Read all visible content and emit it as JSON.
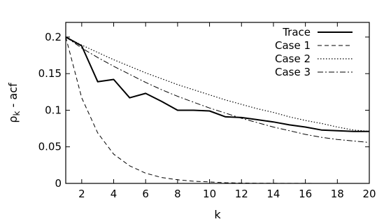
{
  "chart_data": {
    "type": "line",
    "xlabel": "k",
    "ylabel_main": "ρ",
    "ylabel_sub": "k",
    "ylabel_rest": " - acf",
    "xlim": [
      1,
      20
    ],
    "ylim": [
      0,
      0.22
    ],
    "xticks": [
      2,
      4,
      6,
      8,
      10,
      12,
      14,
      16,
      18,
      20
    ],
    "yticks": [
      0,
      0.05,
      0.1,
      0.15,
      0.2
    ],
    "ytick_labels": [
      "0",
      "0.05",
      "0.1",
      "0.15",
      "0.2"
    ],
    "legend_position": "top-right",
    "grid": false,
    "series": [
      {
        "name": "Trace",
        "style": "solid",
        "x": [
          1,
          2,
          3,
          4,
          5,
          6,
          7,
          8,
          9,
          10,
          11,
          12,
          13,
          14,
          15,
          16,
          17,
          18,
          19,
          20
        ],
        "values": [
          0.2,
          0.188,
          0.139,
          0.142,
          0.117,
          0.123,
          0.112,
          0.1,
          0.1,
          0.099,
          0.091,
          0.09,
          0.087,
          0.084,
          0.08,
          0.077,
          0.073,
          0.072,
          0.071,
          0.071
        ]
      },
      {
        "name": "Case 1",
        "style": "dashed",
        "x": [
          1,
          2,
          3,
          4,
          5,
          6,
          7,
          8,
          9,
          10,
          11,
          12,
          13,
          14,
          15,
          16,
          17,
          18,
          19,
          20
        ],
        "values": [
          0.2,
          0.117,
          0.069,
          0.04,
          0.024,
          0.014,
          0.008,
          0.005,
          0.003,
          0.002,
          0.001,
          0.0005,
          0.0003,
          0.0002,
          0.0001,
          0.0001,
          0.0,
          0.0,
          0.0,
          0.0
        ]
      },
      {
        "name": "Case 2",
        "style": "dotted",
        "x": [
          1,
          2,
          3,
          4,
          5,
          6,
          7,
          8,
          9,
          10,
          11,
          12,
          13,
          14,
          15,
          16,
          17,
          18,
          19,
          20
        ],
        "values": [
          0.2,
          0.189,
          0.179,
          0.169,
          0.16,
          0.151,
          0.143,
          0.135,
          0.128,
          0.121,
          0.114,
          0.108,
          0.102,
          0.097,
          0.091,
          0.086,
          0.082,
          0.077,
          0.073,
          0.071
        ]
      },
      {
        "name": "Case 3",
        "style": "dashdot",
        "x": [
          1,
          2,
          3,
          4,
          5,
          6,
          7,
          8,
          9,
          10,
          11,
          12,
          13,
          14,
          15,
          16,
          17,
          18,
          19,
          20
        ],
        "values": [
          0.2,
          0.185,
          0.172,
          0.16,
          0.149,
          0.138,
          0.128,
          0.119,
          0.111,
          0.103,
          0.096,
          0.089,
          0.083,
          0.077,
          0.072,
          0.067,
          0.063,
          0.06,
          0.058,
          0.056
        ]
      }
    ]
  }
}
